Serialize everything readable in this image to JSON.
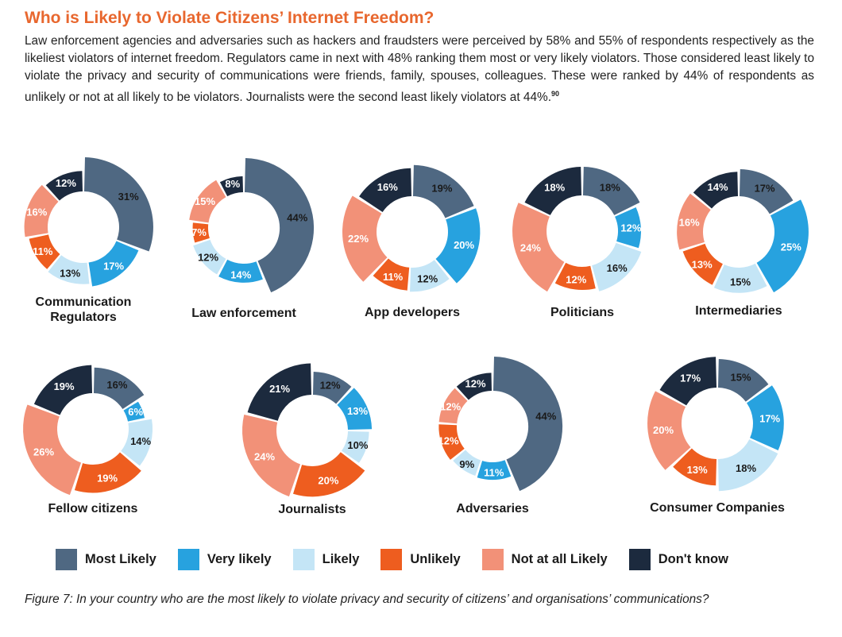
{
  "heading": "Who is Likely to Violate Citizens’ Internet Freedom?",
  "intro": "Law enforcement agencies and adversaries such as hackers and fraudsters were perceived by 58% and 55% of respondents respectively as the likeliest violators of internet freedom. Regulators came in next with 48% ranking them most or very likely violators. Those considered least likely to violate the privacy and security of communications were friends, family, spouses, colleagues. These were ranked by 44% of respondents as unlikely or not at all likely to be violators. Journalists were the second least likely violators at 44%.",
  "intro_footnote": "90",
  "figure_caption": "Figure 7: In your country who are the most likely to violate privacy and security of citizens’ and organisations’ communications?",
  "colors": {
    "most_likely": "#4f6882",
    "very_likely": "#27a2df",
    "likely": "#c4e5f6",
    "unlikely": "#ee5d1f",
    "not_at_all_likely": "#f29178",
    "dont_know": "#1c2a3e",
    "label_light": "#ffffff",
    "label_dark": "#1a1a1a"
  },
  "chart_data": {
    "type": "donut",
    "series": [
      {
        "key": "most_likely",
        "name": "Most Likely"
      },
      {
        "key": "very_likely",
        "name": "Very likely"
      },
      {
        "key": "likely",
        "name": "Likely"
      },
      {
        "key": "unlikely",
        "name": "Unlikely"
      },
      {
        "key": "not_at_all_likely",
        "name": "Not at all Likely"
      },
      {
        "key": "dont_know",
        "name": "Don't know"
      }
    ],
    "value_suffix": "%",
    "legend_position": "bottom",
    "charts": [
      {
        "title_lines": [
          "Communication",
          "Regulators"
        ],
        "values": [
          31,
          17,
          13,
          11,
          16,
          12
        ]
      },
      {
        "title_lines": [
          "Law enforcement"
        ],
        "values": [
          44,
          14,
          12,
          7,
          15,
          8
        ]
      },
      {
        "title_lines": [
          "App developers"
        ],
        "values": [
          19,
          20,
          12,
          11,
          22,
          16
        ]
      },
      {
        "title_lines": [
          "Politicians"
        ],
        "values": [
          18,
          12,
          16,
          12,
          24,
          18
        ]
      },
      {
        "title_lines": [
          "Intermediaries"
        ],
        "values": [
          17,
          25,
          15,
          13,
          16,
          14
        ]
      },
      {
        "title_lines": [
          "Fellow citizens"
        ],
        "values": [
          16,
          6,
          14,
          19,
          26,
          19
        ]
      },
      {
        "title_lines": [
          "Journalists"
        ],
        "values": [
          12,
          13,
          10,
          20,
          24,
          21
        ]
      },
      {
        "title_lines": [
          "Adversaries"
        ],
        "values": [
          44,
          11,
          9,
          12,
          12,
          12
        ]
      },
      {
        "title_lines": [
          "Consumer Companies"
        ],
        "values": [
          15,
          17,
          18,
          13,
          20,
          17
        ]
      }
    ]
  }
}
